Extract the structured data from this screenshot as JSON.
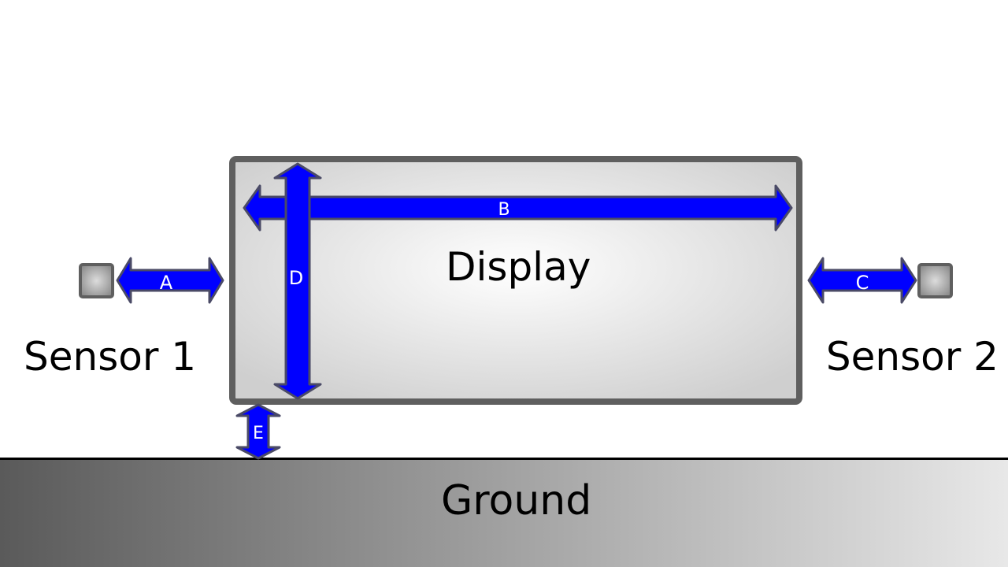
{
  "labels": {
    "display": "Display",
    "ground": "Ground",
    "sensor1": "Sensor 1",
    "sensor2": "Sensor 2"
  },
  "dimensions": {
    "a": "A",
    "b": "B",
    "c": "C",
    "d": "D",
    "e": "E"
  },
  "colors": {
    "arrow_fill": "#0000ff",
    "arrow_stroke": "#4a4a66",
    "display_border": "#5f5f5f",
    "sensor_fill": "#9a9a9a",
    "sensor_border": "#5f5f5f",
    "ground_line": "#000000",
    "ground_dark": "#5a5a5a",
    "ground_light": "#e8e8e8"
  }
}
